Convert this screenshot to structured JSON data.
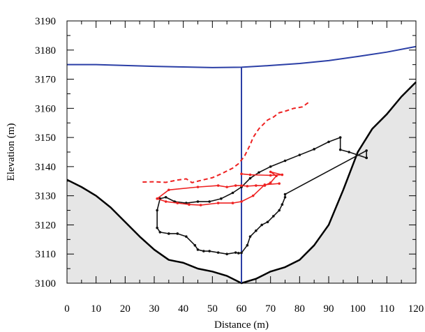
{
  "chart_data": {
    "type": "line",
    "xlabel": "Distance (m)",
    "ylabel": "Elevation (m)",
    "xlim": [
      0,
      120
    ],
    "ylim": [
      3100,
      3190
    ],
    "xticks": [
      0,
      10,
      20,
      30,
      40,
      50,
      60,
      70,
      80,
      90,
      100,
      110,
      120
    ],
    "yticks": [
      3100,
      3110,
      3120,
      3130,
      3140,
      3150,
      3160,
      3170,
      3180,
      3190
    ],
    "grid": false,
    "colors": {
      "terrain_fill": "#e6e6e6",
      "terrain_line": "#000000",
      "surface": "#2b3fa6",
      "vertical": "#2b3fa6",
      "black_path": "#111111",
      "red_path": "#ee2222",
      "red_dashed": "#ee2222"
    },
    "series": [
      {
        "key": "terrain",
        "style": "area",
        "x": [
          0,
          5,
          10,
          15,
          20,
          25,
          30,
          35,
          40,
          45,
          50,
          55,
          60,
          65,
          70,
          75,
          80,
          85,
          90,
          95,
          100,
          105,
          110,
          115,
          120
        ],
        "y": [
          3135.5,
          3133,
          3130,
          3126,
          3121,
          3116,
          3111.5,
          3108,
          3107,
          3105,
          3104,
          3102.5,
          3100,
          3101.5,
          3104,
          3105.5,
          3108,
          3113,
          3120,
          3132,
          3145,
          3153,
          3158,
          3164,
          3169
        ]
      },
      {
        "key": "surface",
        "style": "line",
        "x": [
          0,
          10,
          20,
          30,
          40,
          50,
          60,
          70,
          80,
          90,
          100,
          110,
          120
        ],
        "y": [
          3175,
          3175,
          3174.7,
          3174.4,
          3174.2,
          3174,
          3174.1,
          3174.7,
          3175.4,
          3176.4,
          3177.8,
          3179.3,
          3181.2
        ]
      },
      {
        "key": "vertical",
        "style": "line",
        "x": [
          60,
          60
        ],
        "y": [
          3174.1,
          3100
        ]
      },
      {
        "key": "black_path",
        "style": "line-markers",
        "x": [
          103,
          97,
          94,
          94,
          90,
          85,
          80,
          75,
          70,
          66,
          63,
          60,
          57,
          53,
          49,
          45,
          41,
          37,
          34,
          32,
          31,
          31,
          32,
          35,
          38,
          41,
          44,
          45,
          47,
          49,
          52,
          55,
          58,
          59,
          60,
          62,
          63,
          65,
          67,
          69,
          71,
          73,
          74,
          75,
          75,
          103,
          103
        ],
        "y": [
          3143,
          3145,
          3145.8,
          3150,
          3148.5,
          3146,
          3144,
          3142,
          3140,
          3138,
          3136,
          3133,
          3131,
          3129,
          3128,
          3128,
          3127.5,
          3128,
          3129.5,
          3129,
          3125,
          3119,
          3117.5,
          3117,
          3117,
          3116,
          3113,
          3111.5,
          3111,
          3111,
          3110.5,
          3110,
          3110.5,
          3110.3,
          3110.4,
          3113,
          3116,
          3118,
          3120,
          3121,
          3123,
          3125,
          3127,
          3129.5,
          3130.5,
          3145.5,
          3143
        ]
      },
      {
        "key": "red_path",
        "style": "line-markers",
        "x": [
          73,
          68,
          64,
          60,
          57,
          52,
          46,
          42,
          38,
          34,
          31,
          35,
          45,
          52,
          55,
          58,
          60,
          62,
          65,
          68,
          70,
          72,
          70,
          74,
          70,
          63,
          60
        ],
        "y": [
          3134.2,
          3133.8,
          3130,
          3128,
          3127.5,
          3127.5,
          3126.8,
          3127,
          3127.5,
          3128,
          3129,
          3132,
          3133,
          3133.5,
          3133,
          3133.5,
          3133.5,
          3133.3,
          3133.5,
          3133.5,
          3134.5,
          3136.8,
          3138.2,
          3137.2,
          3137,
          3137.2,
          3137.5
        ]
      },
      {
        "key": "red_dashed",
        "style": "dashed",
        "x": [
          26,
          30,
          34,
          38,
          41,
          43,
          45,
          47,
          50,
          53,
          55,
          57,
          59,
          61,
          63,
          64,
          66,
          69,
          71,
          73,
          75,
          78,
          81,
          83
        ],
        "y": [
          3134.7,
          3134.8,
          3134.6,
          3135.4,
          3135.8,
          3134.5,
          3135,
          3135.5,
          3136.2,
          3137.5,
          3138.5,
          3139.5,
          3141,
          3143.5,
          3147.5,
          3150,
          3153,
          3156,
          3157,
          3158.5,
          3159,
          3160,
          3160.5,
          3162
        ]
      }
    ]
  }
}
